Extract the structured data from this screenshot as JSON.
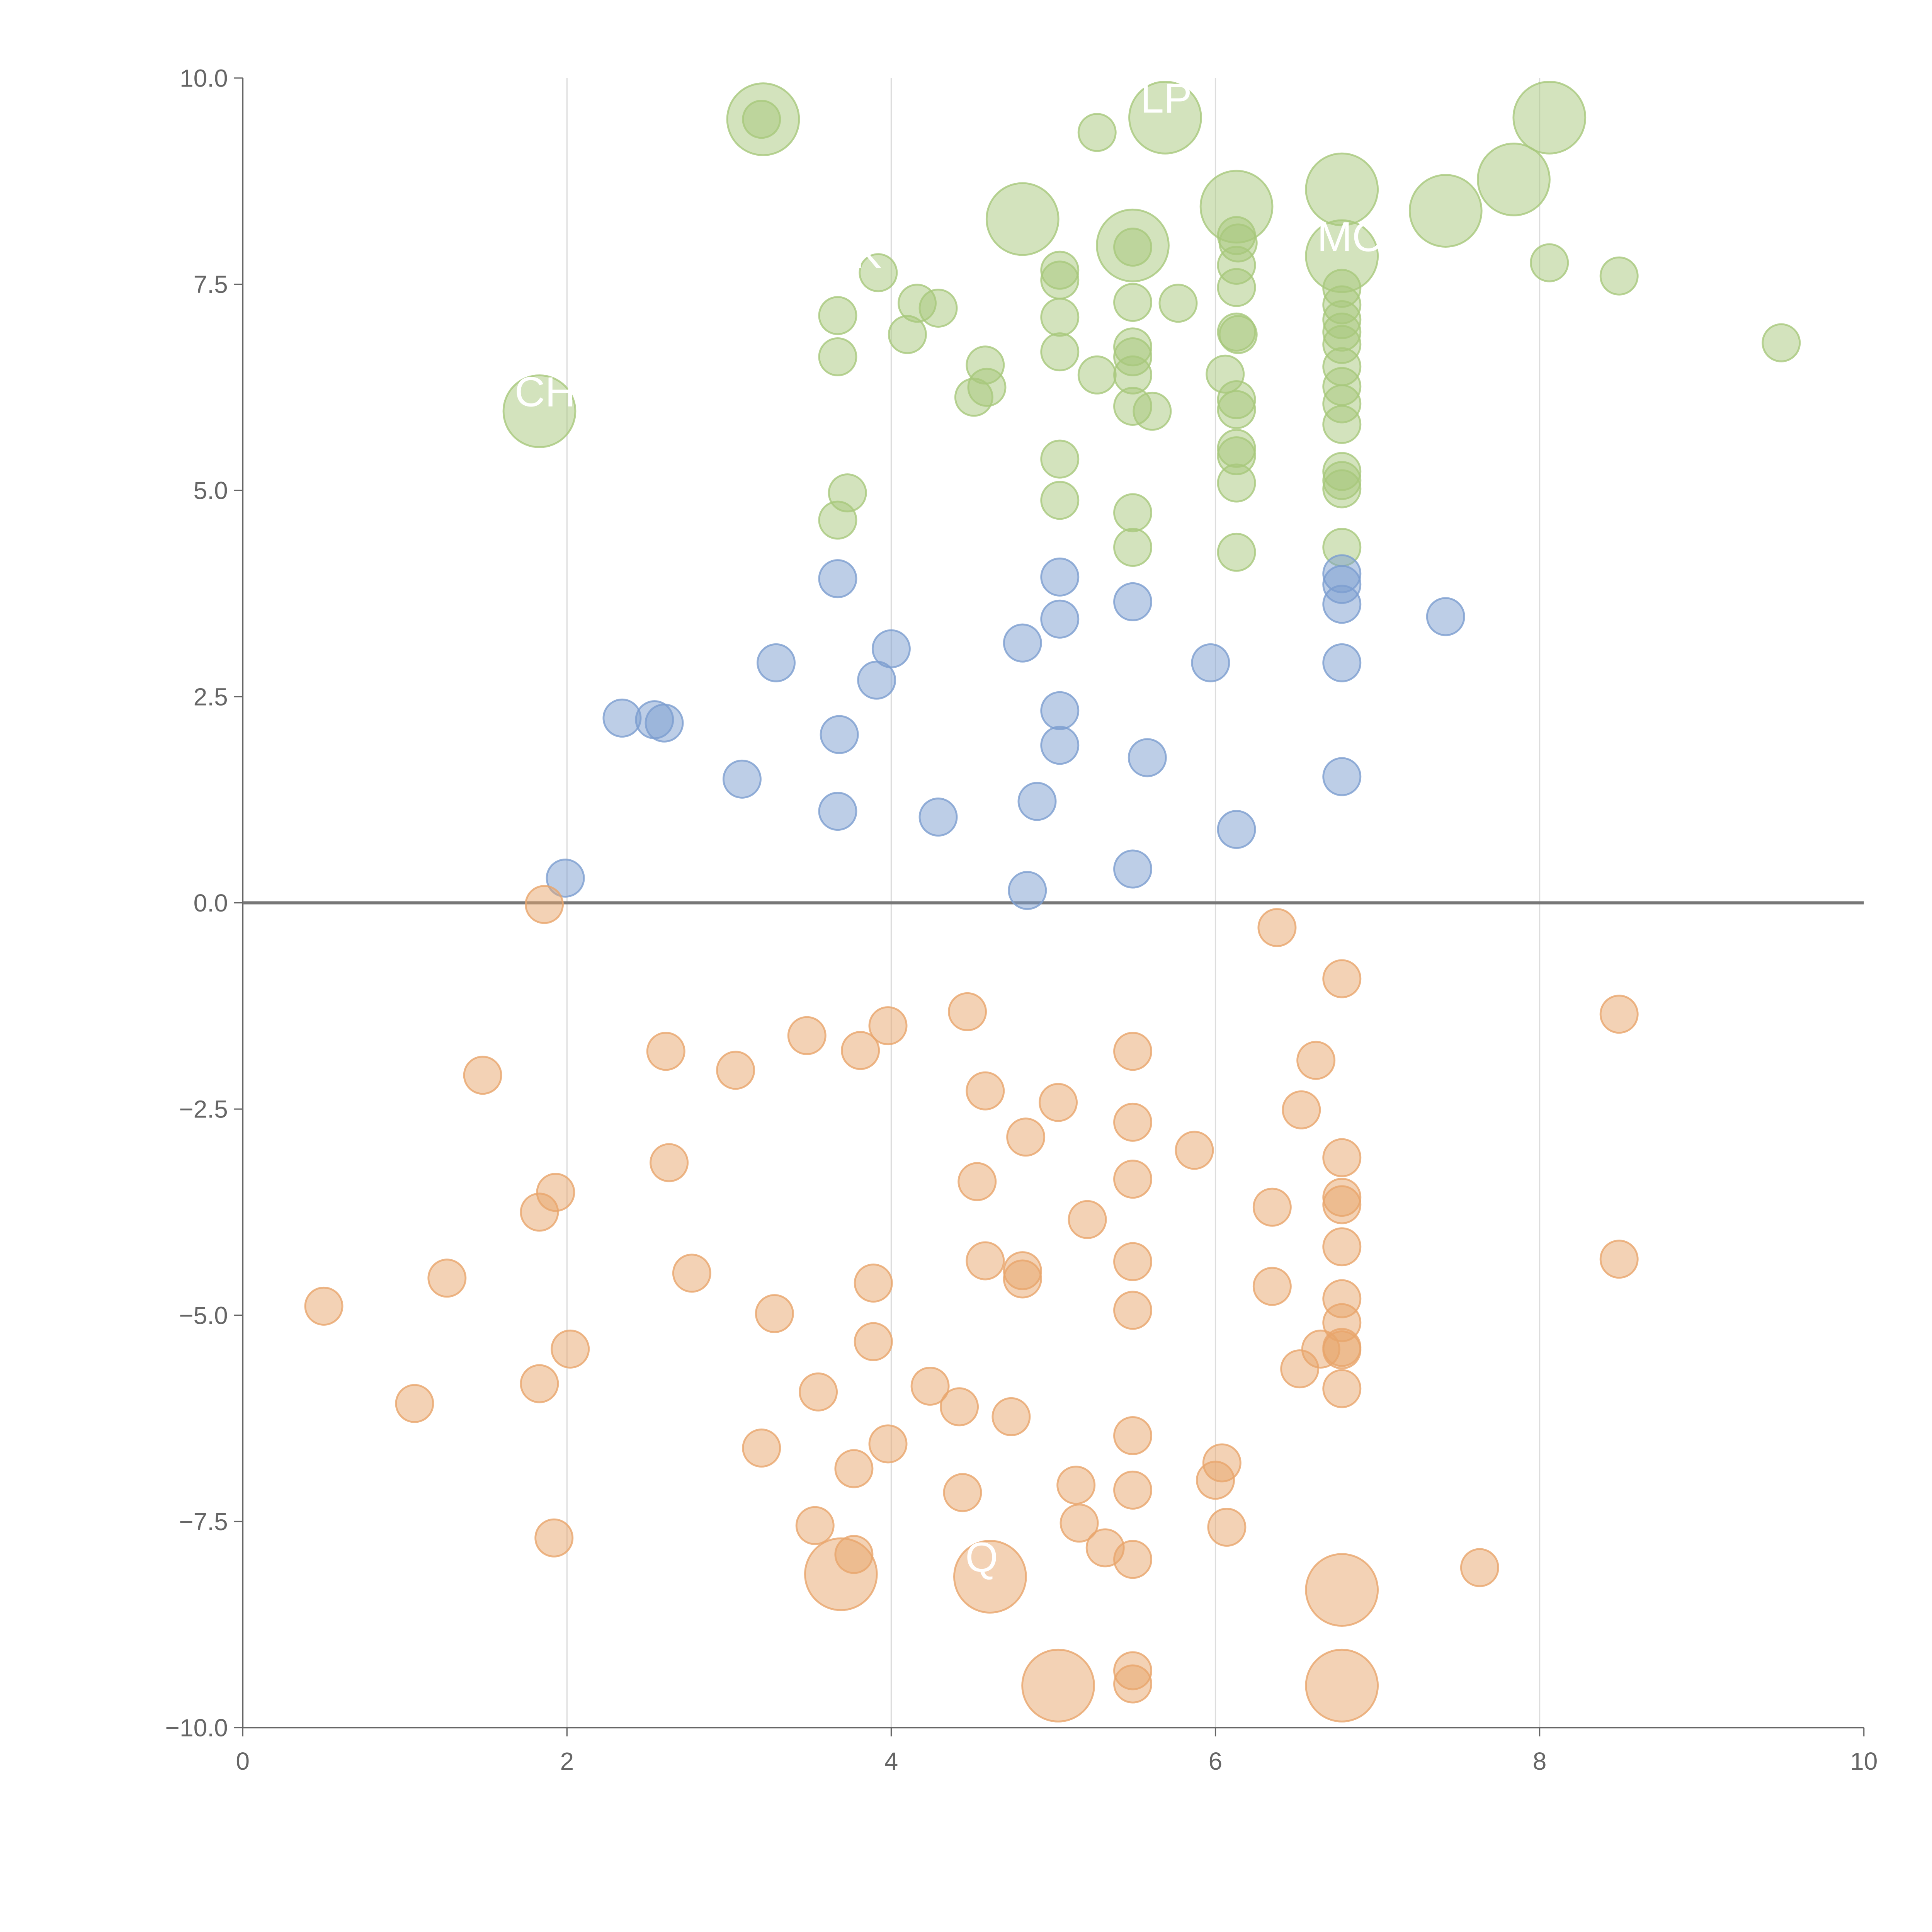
{
  "chart_data": {
    "type": "scatter",
    "title": "",
    "xlabel": "",
    "ylabel": "",
    "xlim": [
      0,
      10
    ],
    "ylim": [
      -10,
      10
    ],
    "xticks": [
      "0",
      "2",
      "4",
      "6",
      "8",
      "10"
    ],
    "yticks": [
      "−10.0",
      "−7.5",
      "−5.0",
      "−2.5",
      "0.0",
      "2.5",
      "5.0",
      "7.5",
      "10.0"
    ],
    "grid": "vertical",
    "zero_line": true,
    "point_format": "[x, y, size] where size 1 = small, 4 = large",
    "series": [
      {
        "name": "green",
        "color": "#a8c87c",
        "points": [
          [
            3.21,
            9.5,
            4
          ],
          [
            3.2,
            9.5,
            1
          ],
          [
            5.27,
            9.34,
            1
          ],
          [
            5.69,
            9.52,
            4
          ],
          [
            8.06,
            9.52,
            4
          ],
          [
            7.84,
            8.77,
            4
          ],
          [
            6.78,
            8.65,
            4
          ],
          [
            6.13,
            8.44,
            4
          ],
          [
            7.42,
            8.39,
            4
          ],
          [
            4.81,
            8.29,
            4
          ],
          [
            5.49,
            7.97,
            4
          ],
          [
            5.49,
            7.95,
            1
          ],
          [
            6.78,
            7.84,
            4
          ],
          [
            3.92,
            7.64,
            1
          ],
          [
            5.04,
            7.67,
            1
          ],
          [
            5.04,
            7.55,
            1
          ],
          [
            4.16,
            7.27,
            1
          ],
          [
            4.29,
            7.21,
            1
          ],
          [
            4.1,
            6.89,
            1
          ],
          [
            3.67,
            7.12,
            1
          ],
          [
            3.67,
            6.62,
            1
          ],
          [
            4.58,
            6.52,
            1
          ],
          [
            4.59,
            6.25,
            1
          ],
          [
            4.51,
            6.13,
            1
          ],
          [
            5.04,
            7.1,
            1
          ],
          [
            5.04,
            6.68,
            1
          ],
          [
            5.27,
            6.4,
            1
          ],
          [
            5.49,
            7.28,
            1
          ],
          [
            5.49,
            6.74,
            1
          ],
          [
            5.49,
            6.62,
            1
          ],
          [
            5.49,
            6.4,
            1
          ],
          [
            5.49,
            6.02,
            1
          ],
          [
            5.61,
            5.96,
            1
          ],
          [
            5.77,
            7.27,
            1
          ],
          [
            6.13,
            8.09,
            1
          ],
          [
            6.14,
            8.0,
            1
          ],
          [
            6.13,
            7.73,
            1
          ],
          [
            6.13,
            7.46,
            1
          ],
          [
            6.13,
            6.92,
            1
          ],
          [
            6.14,
            6.89,
            1
          ],
          [
            6.06,
            6.41,
            1
          ],
          [
            6.13,
            6.1,
            1
          ],
          [
            6.13,
            5.98,
            1
          ],
          [
            6.13,
            5.51,
            1
          ],
          [
            6.13,
            5.42,
            1
          ],
          [
            6.13,
            5.09,
            1
          ],
          [
            6.13,
            4.25,
            1
          ],
          [
            6.78,
            7.45,
            1
          ],
          [
            6.78,
            7.25,
            1
          ],
          [
            6.78,
            7.07,
            1
          ],
          [
            6.78,
            6.92,
            1
          ],
          [
            6.78,
            6.77,
            1
          ],
          [
            6.78,
            6.5,
            1
          ],
          [
            6.78,
            6.26,
            1
          ],
          [
            6.78,
            6.05,
            1
          ],
          [
            6.78,
            5.8,
            1
          ],
          [
            6.78,
            5.23,
            1
          ],
          [
            6.78,
            5.12,
            1
          ],
          [
            6.78,
            5.02,
            1
          ],
          [
            6.78,
            4.31,
            1
          ],
          [
            8.06,
            7.76,
            1
          ],
          [
            8.49,
            7.6,
            1
          ],
          [
            9.49,
            6.79,
            1
          ],
          [
            1.83,
            5.96,
            4
          ],
          [
            5.04,
            5.38,
            1
          ],
          [
            5.04,
            4.88,
            1
          ],
          [
            5.49,
            4.73,
            1
          ],
          [
            5.49,
            4.31,
            1
          ],
          [
            3.73,
            4.97,
            1
          ],
          [
            3.67,
            4.64,
            1
          ]
        ]
      },
      {
        "name": "blue",
        "color": "#7c9ed0",
        "points": [
          [
            3.67,
            3.93,
            1
          ],
          [
            3.29,
            2.91,
            1
          ],
          [
            2.34,
            2.24,
            1
          ],
          [
            2.54,
            2.22,
            1
          ],
          [
            2.6,
            2.18,
            1
          ],
          [
            3.08,
            1.5,
            1
          ],
          [
            3.68,
            2.04,
            1
          ],
          [
            3.67,
            1.11,
            1
          ],
          [
            3.91,
            2.7,
            1
          ],
          [
            4.0,
            3.08,
            1
          ],
          [
            4.29,
            1.04,
            1
          ],
          [
            4.81,
            3.15,
            1
          ],
          [
            4.9,
            1.23,
            1
          ],
          [
            4.84,
            0.15,
            1
          ],
          [
            5.04,
            3.95,
            1
          ],
          [
            5.04,
            3.44,
            1
          ],
          [
            5.04,
            2.33,
            1
          ],
          [
            5.04,
            1.91,
            1
          ],
          [
            5.49,
            3.65,
            1
          ],
          [
            5.58,
            1.76,
            1
          ],
          [
            5.49,
            0.41,
            1
          ],
          [
            5.97,
            2.91,
            1
          ],
          [
            6.13,
            0.89,
            1
          ],
          [
            6.78,
            3.99,
            1
          ],
          [
            6.78,
            3.86,
            1
          ],
          [
            6.78,
            3.62,
            1
          ],
          [
            6.78,
            2.91,
            1
          ],
          [
            6.78,
            1.53,
            1
          ],
          [
            7.42,
            3.47,
            1
          ],
          [
            1.99,
            0.3,
            1
          ]
        ]
      },
      {
        "name": "orange",
        "color": "#e8a56c",
        "points": [
          [
            1.86,
            -0.02,
            1
          ],
          [
            6.38,
            -0.3,
            1
          ],
          [
            6.78,
            -0.92,
            1
          ],
          [
            4.47,
            -1.32,
            1
          ],
          [
            8.49,
            -1.35,
            1
          ],
          [
            3.98,
            -1.49,
            1
          ],
          [
            3.48,
            -1.61,
            1
          ],
          [
            3.81,
            -1.79,
            1
          ],
          [
            2.61,
            -1.8,
            1
          ],
          [
            5.49,
            -1.8,
            1
          ],
          [
            6.62,
            -1.91,
            1
          ],
          [
            1.48,
            -2.09,
            1
          ],
          [
            3.04,
            -2.03,
            1
          ],
          [
            4.58,
            -2.28,
            1
          ],
          [
            5.03,
            -2.42,
            1
          ],
          [
            6.53,
            -2.51,
            1
          ],
          [
            5.49,
            -2.66,
            1
          ],
          [
            4.83,
            -2.84,
            1
          ],
          [
            5.87,
            -3.0,
            1
          ],
          [
            6.78,
            -3.09,
            1
          ],
          [
            2.63,
            -3.15,
            1
          ],
          [
            4.53,
            -3.38,
            1
          ],
          [
            5.49,
            -3.35,
            1
          ],
          [
            1.93,
            -3.51,
            1
          ],
          [
            6.78,
            -3.57,
            1
          ],
          [
            6.78,
            -3.66,
            1
          ],
          [
            6.35,
            -3.69,
            1
          ],
          [
            1.83,
            -3.75,
            1
          ],
          [
            5.21,
            -3.84,
            1
          ],
          [
            6.78,
            -4.17,
            1
          ],
          [
            8.49,
            -4.32,
            1
          ],
          [
            4.58,
            -4.34,
            1
          ],
          [
            5.49,
            -4.35,
            1
          ],
          [
            4.81,
            -4.46,
            1
          ],
          [
            4.81,
            -4.56,
            1
          ],
          [
            2.77,
            -4.49,
            1
          ],
          [
            1.26,
            -4.55,
            1
          ],
          [
            3.89,
            -4.61,
            1
          ],
          [
            6.35,
            -4.65,
            1
          ],
          [
            6.78,
            -4.8,
            1
          ],
          [
            0.5,
            -4.89,
            1
          ],
          [
            5.49,
            -4.94,
            1
          ],
          [
            3.28,
            -4.98,
            1
          ],
          [
            6.78,
            -5.09,
            1
          ],
          [
            6.65,
            -5.41,
            1
          ],
          [
            6.78,
            -5.39,
            1
          ],
          [
            6.78,
            -5.42,
            1
          ],
          [
            2.02,
            -5.41,
            1
          ],
          [
            3.89,
            -5.32,
            1
          ],
          [
            6.52,
            -5.65,
            1
          ],
          [
            1.83,
            -5.83,
            1
          ],
          [
            4.24,
            -5.86,
            1
          ],
          [
            3.55,
            -5.93,
            1
          ],
          [
            6.78,
            -5.89,
            1
          ],
          [
            1.06,
            -6.07,
            1
          ],
          [
            4.42,
            -6.11,
            1
          ],
          [
            4.74,
            -6.23,
            1
          ],
          [
            5.49,
            -6.46,
            1
          ],
          [
            3.98,
            -6.56,
            1
          ],
          [
            3.2,
            -6.61,
            1
          ],
          [
            6.04,
            -6.79,
            1
          ],
          [
            3.77,
            -6.86,
            1
          ],
          [
            6.0,
            -7.0,
            1
          ],
          [
            5.14,
            -7.06,
            1
          ],
          [
            5.49,
            -7.12,
            1
          ],
          [
            4.44,
            -7.15,
            1
          ],
          [
            3.53,
            -7.55,
            1
          ],
          [
            5.16,
            -7.52,
            1
          ],
          [
            6.07,
            -7.57,
            1
          ],
          [
            1.92,
            -7.7,
            1
          ],
          [
            5.32,
            -7.82,
            1
          ],
          [
            3.77,
            -7.9,
            1
          ],
          [
            5.49,
            -7.96,
            1
          ],
          [
            7.63,
            -8.06,
            1
          ],
          [
            3.69,
            -8.14,
            4
          ],
          [
            4.61,
            -8.17,
            4
          ],
          [
            6.78,
            -8.33,
            4
          ],
          [
            5.03,
            -9.49,
            4
          ],
          [
            6.78,
            -9.49,
            4
          ],
          [
            5.49,
            -9.31,
            1
          ],
          [
            5.49,
            -9.47,
            1
          ]
        ]
      }
    ],
    "annotations": [
      {
        "text": "LP",
        "x": 5.69,
        "y": 9.52
      },
      {
        "text": "CH",
        "x": 1.83,
        "y": 5.96
      },
      {
        "text": "MO",
        "x": 6.78,
        "y": 7.84
      },
      {
        "text": "K",
        "x": 3.92,
        "y": 7.64
      },
      {
        "text": "Q",
        "x": 4.61,
        "y": -8.17
      }
    ]
  }
}
